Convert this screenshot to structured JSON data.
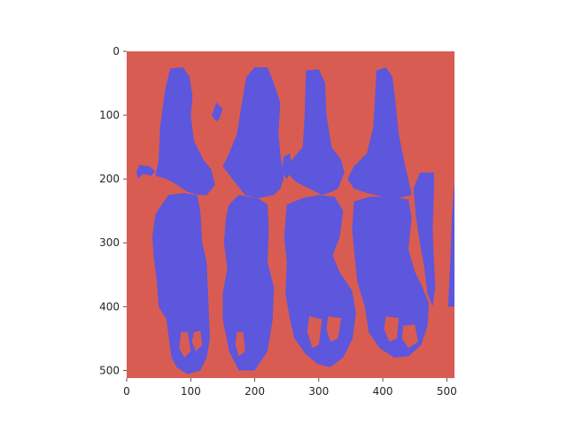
{
  "chart_data": {
    "type": "heatmap",
    "title": "",
    "xlabel": "",
    "ylabel": "",
    "image_width": 512,
    "image_height": 512,
    "xlim": [
      0,
      512
    ],
    "ylim": [
      512,
      0
    ],
    "grid": false,
    "legend": "none",
    "colors": {
      "background": "#d95c52",
      "foreground": "#5c57dc"
    },
    "x_ticks": [
      {
        "value": 0,
        "label": "0"
      },
      {
        "value": 100,
        "label": "100"
      },
      {
        "value": 200,
        "label": "200"
      },
      {
        "value": 300,
        "label": "300"
      },
      {
        "value": 400,
        "label": "400"
      },
      {
        "value": 500,
        "label": "500"
      }
    ],
    "y_ticks": [
      {
        "value": 0,
        "label": "0"
      },
      {
        "value": 100,
        "label": "100"
      },
      {
        "value": 200,
        "label": "200"
      },
      {
        "value": 300,
        "label": "300"
      },
      {
        "value": 400,
        "label": "400"
      },
      {
        "value": 500,
        "label": "500"
      }
    ],
    "regions": [
      {
        "name": "blob-1",
        "points": [
          [
            68,
            27
          ],
          [
            88,
            25
          ],
          [
            98,
            40
          ],
          [
            103,
            70
          ],
          [
            100,
            100
          ],
          [
            105,
            140
          ],
          [
            120,
            170
          ],
          [
            132,
            185
          ],
          [
            138,
            210
          ],
          [
            125,
            225
          ],
          [
            112,
            225
          ],
          [
            95,
            220
          ],
          [
            80,
            210
          ],
          [
            62,
            200
          ],
          [
            45,
            195
          ],
          [
            50,
            170
          ],
          [
            52,
            120
          ],
          [
            60,
            60
          ]
        ]
      },
      {
        "name": "blob-2",
        "points": [
          [
            45,
            255
          ],
          [
            65,
            225
          ],
          [
            90,
            222
          ],
          [
            110,
            225
          ],
          [
            115,
            250
          ],
          [
            118,
            300
          ],
          [
            125,
            330
          ],
          [
            128,
            400
          ],
          [
            130,
            450
          ],
          [
            125,
            480
          ],
          [
            115,
            500
          ],
          [
            95,
            506
          ],
          [
            78,
            495
          ],
          [
            70,
            480
          ],
          [
            62,
            420
          ],
          [
            50,
            400
          ],
          [
            47,
            360
          ],
          [
            42,
            320
          ],
          [
            40,
            290
          ]
        ]
      },
      {
        "name": "blob-3",
        "points": [
          [
            187,
            40
          ],
          [
            200,
            25
          ],
          [
            220,
            25
          ],
          [
            228,
            45
          ],
          [
            240,
            80
          ],
          [
            237,
            130
          ],
          [
            240,
            160
          ],
          [
            245,
            200
          ],
          [
            240,
            215
          ],
          [
            230,
            225
          ],
          [
            205,
            230
          ],
          [
            185,
            225
          ],
          [
            165,
            200
          ],
          [
            150,
            180
          ],
          [
            160,
            160
          ],
          [
            172,
            130
          ],
          [
            180,
            80
          ]
        ]
      },
      {
        "name": "blob-4",
        "points": [
          [
            160,
            240
          ],
          [
            175,
            225
          ],
          [
            205,
            230
          ],
          [
            220,
            240
          ],
          [
            222,
            280
          ],
          [
            220,
            330
          ],
          [
            230,
            370
          ],
          [
            228,
            420
          ],
          [
            220,
            470
          ],
          [
            200,
            500
          ],
          [
            175,
            500
          ],
          [
            160,
            470
          ],
          [
            150,
            420
          ],
          [
            150,
            380
          ],
          [
            157,
            340
          ],
          [
            152,
            300
          ],
          [
            155,
            260
          ]
        ]
      },
      {
        "name": "blob-5",
        "points": [
          [
            280,
            30
          ],
          [
            300,
            28
          ],
          [
            310,
            50
          ],
          [
            312,
            100
          ],
          [
            320,
            150
          ],
          [
            335,
            170
          ],
          [
            340,
            190
          ],
          [
            330,
            215
          ],
          [
            320,
            220
          ],
          [
            305,
            225
          ],
          [
            285,
            215
          ],
          [
            265,
            205
          ],
          [
            250,
            190
          ],
          [
            258,
            170
          ],
          [
            275,
            150
          ],
          [
            278,
            100
          ]
        ]
      },
      {
        "name": "blob-6",
        "points": [
          [
            250,
            240
          ],
          [
            275,
            230
          ],
          [
            300,
            225
          ],
          [
            325,
            228
          ],
          [
            338,
            250
          ],
          [
            333,
            290
          ],
          [
            322,
            320
          ],
          [
            332,
            345
          ],
          [
            352,
            375
          ],
          [
            358,
            410
          ],
          [
            353,
            450
          ],
          [
            338,
            480
          ],
          [
            318,
            495
          ],
          [
            298,
            490
          ],
          [
            280,
            475
          ],
          [
            262,
            450
          ],
          [
            255,
            420
          ],
          [
            248,
            380
          ],
          [
            250,
            330
          ],
          [
            246,
            290
          ]
        ]
      },
      {
        "name": "blob-7",
        "points": [
          [
            390,
            30
          ],
          [
            405,
            25
          ],
          [
            415,
            40
          ],
          [
            420,
            80
          ],
          [
            425,
            130
          ],
          [
            435,
            180
          ],
          [
            440,
            200
          ],
          [
            445,
            225
          ],
          [
            425,
            230
          ],
          [
            400,
            228
          ],
          [
            375,
            222
          ],
          [
            355,
            215
          ],
          [
            345,
            200
          ],
          [
            355,
            180
          ],
          [
            375,
            160
          ],
          [
            385,
            120
          ],
          [
            388,
            70
          ]
        ]
      },
      {
        "name": "blob-8",
        "points": [
          [
            355,
            235
          ],
          [
            380,
            228
          ],
          [
            410,
            228
          ],
          [
            440,
            232
          ],
          [
            445,
            260
          ],
          [
            440,
            310
          ],
          [
            450,
            345
          ],
          [
            462,
            370
          ],
          [
            472,
            395
          ],
          [
            470,
            430
          ],
          [
            460,
            460
          ],
          [
            440,
            478
          ],
          [
            418,
            480
          ],
          [
            395,
            465
          ],
          [
            378,
            440
          ],
          [
            372,
            400
          ],
          [
            360,
            360
          ],
          [
            356,
            320
          ],
          [
            352,
            280
          ]
        ]
      },
      {
        "name": "blob-9",
        "points": [
          [
            448,
            215
          ],
          [
            458,
            190
          ],
          [
            480,
            190
          ],
          [
            480,
            215
          ],
          [
            478,
            280
          ],
          [
            480,
            330
          ],
          [
            482,
            370
          ],
          [
            478,
            400
          ],
          [
            470,
            380
          ],
          [
            465,
            340
          ],
          [
            458,
            300
          ],
          [
            452,
            260
          ]
        ]
      },
      {
        "name": "blob-10",
        "points": [
          [
            512,
            200
          ],
          [
            512,
            400
          ],
          [
            502,
            400
          ],
          [
            505,
            340
          ],
          [
            508,
            260
          ]
        ]
      },
      {
        "name": "blob-11",
        "points": [
          [
            20,
            178
          ],
          [
            35,
            180
          ],
          [
            45,
            188
          ],
          [
            38,
            195
          ],
          [
            25,
            192
          ],
          [
            18,
            200
          ],
          [
            15,
            190
          ]
        ]
      },
      {
        "name": "blob-12",
        "points": [
          [
            140,
            80
          ],
          [
            150,
            90
          ],
          [
            145,
            105
          ],
          [
            140,
            110
          ],
          [
            133,
            100
          ]
        ]
      },
      {
        "name": "blob-13",
        "points": [
          [
            245,
            165
          ],
          [
            255,
            160
          ],
          [
            258,
            185
          ],
          [
            250,
            200
          ],
          [
            242,
            190
          ]
        ]
      }
    ],
    "holes": [
      {
        "name": "hole-1",
        "points": [
          [
            85,
            440
          ],
          [
            95,
            440
          ],
          [
            100,
            470
          ],
          [
            90,
            480
          ],
          [
            82,
            465
          ]
        ]
      },
      {
        "name": "hole-2",
        "points": [
          [
            105,
            440
          ],
          [
            115,
            438
          ],
          [
            118,
            460
          ],
          [
            108,
            470
          ],
          [
            102,
            455
          ]
        ]
      },
      {
        "name": "hole-3",
        "points": [
          [
            172,
            440
          ],
          [
            182,
            440
          ],
          [
            185,
            470
          ],
          [
            175,
            478
          ],
          [
            170,
            460
          ]
        ]
      },
      {
        "name": "hole-4",
        "points": [
          [
            285,
            415
          ],
          [
            305,
            420
          ],
          [
            300,
            460
          ],
          [
            290,
            465
          ],
          [
            282,
            440
          ]
        ]
      },
      {
        "name": "hole-5",
        "points": [
          [
            315,
            415
          ],
          [
            335,
            418
          ],
          [
            330,
            450
          ],
          [
            318,
            455
          ],
          [
            312,
            435
          ]
        ]
      },
      {
        "name": "hole-6",
        "points": [
          [
            405,
            415
          ],
          [
            425,
            418
          ],
          [
            422,
            450
          ],
          [
            410,
            455
          ],
          [
            402,
            435
          ]
        ]
      },
      {
        "name": "hole-7",
        "points": [
          [
            432,
            430
          ],
          [
            450,
            428
          ],
          [
            455,
            455
          ],
          [
            440,
            465
          ],
          [
            430,
            450
          ]
        ]
      }
    ]
  }
}
